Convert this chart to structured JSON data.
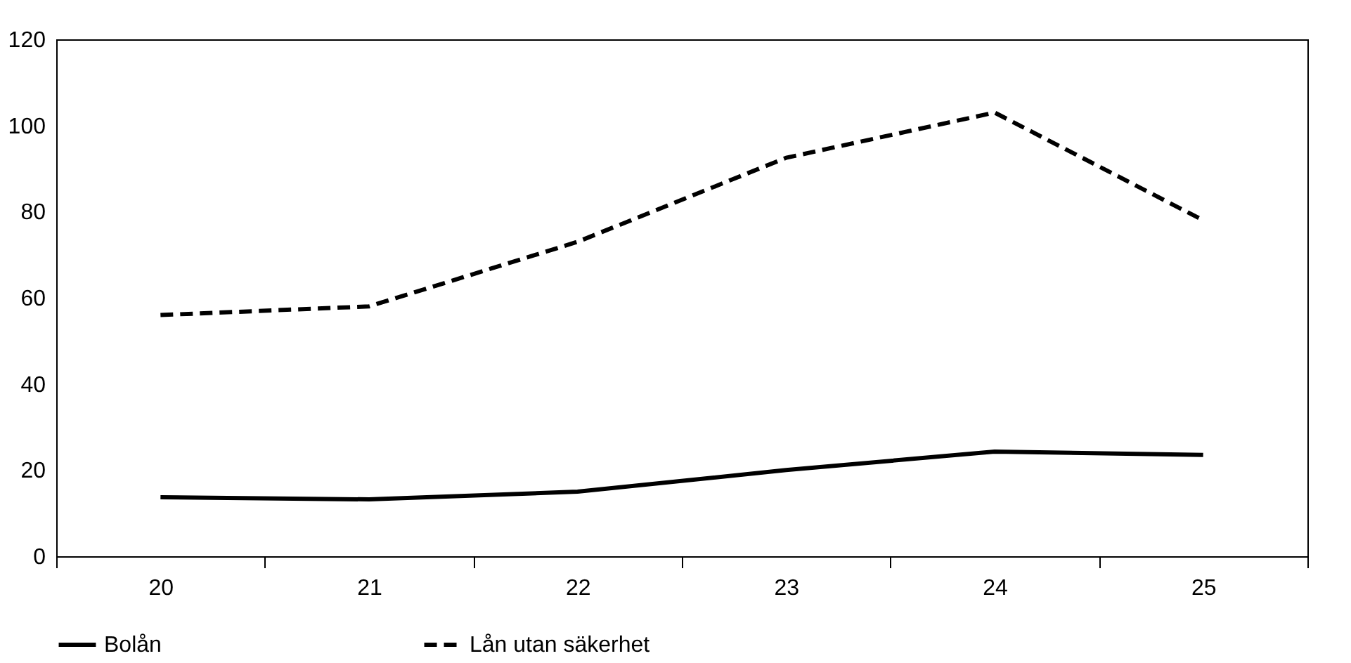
{
  "chart_data": {
    "type": "line",
    "categories": [
      "20",
      "21",
      "22",
      "23",
      "24",
      "25"
    ],
    "series": [
      {
        "name": "Bolån",
        "color": "#000000",
        "line_style": "solid",
        "values": [
          13.7,
          13.2,
          15,
          20,
          24.3,
          23.5
        ]
      },
      {
        "name": "Lån utan säkerhet",
        "color": "#000000",
        "line_style": "dashed",
        "values": [
          56,
          58,
          73,
          92.5,
          103,
          78
        ]
      }
    ],
    "ylim": [
      0,
      120
    ],
    "yticks": [
      0,
      20,
      40,
      60,
      80,
      100,
      120
    ],
    "grid": false,
    "legend": "bottom",
    "marker": "none"
  }
}
